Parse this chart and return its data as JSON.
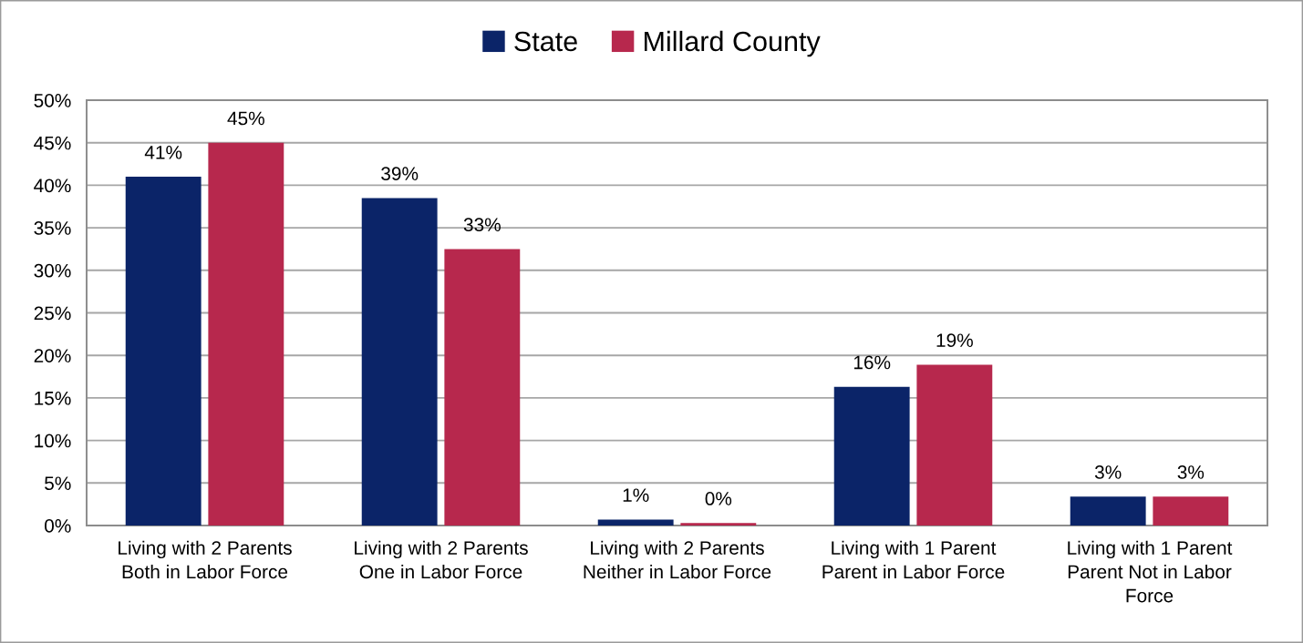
{
  "chart_data": {
    "type": "bar",
    "categories": [
      "Living with 2 Parents\nBoth in Labor Force",
      "Living with 2 Parents\nOne in Labor Force",
      "Living with 2 Parents\nNeither in Labor Force",
      "Living with 1 Parent\nParent in Labor Force",
      "Living with 1 Parent\nParent Not in Labor\nForce"
    ],
    "series": [
      {
        "name": "State",
        "color": "#0b2468",
        "values": [
          41,
          38.5,
          0.7,
          16.3,
          3.4
        ],
        "value_labels": [
          "41%",
          "39%",
          "1%",
          "16%",
          "3%"
        ]
      },
      {
        "name": "Millard County",
        "color": "#b7284d",
        "values": [
          45,
          32.5,
          0.3,
          18.9,
          3.4
        ],
        "value_labels": [
          "45%",
          "33%",
          "0%",
          "19%",
          "3%"
        ]
      }
    ],
    "ylim": [
      0,
      50
    ],
    "yticks": [
      {
        "value": 0,
        "label": "0%"
      },
      {
        "value": 5,
        "label": "5%"
      },
      {
        "value": 10,
        "label": "10%"
      },
      {
        "value": 15,
        "label": "15%"
      },
      {
        "value": 20,
        "label": "20%"
      },
      {
        "value": 25,
        "label": "25%"
      },
      {
        "value": 30,
        "label": "30%"
      },
      {
        "value": 35,
        "label": "35%"
      },
      {
        "value": 40,
        "label": "40%"
      },
      {
        "value": 45,
        "label": "45%"
      },
      {
        "value": 50,
        "label": "50%"
      }
    ],
    "grid": "y",
    "legend": "top"
  }
}
